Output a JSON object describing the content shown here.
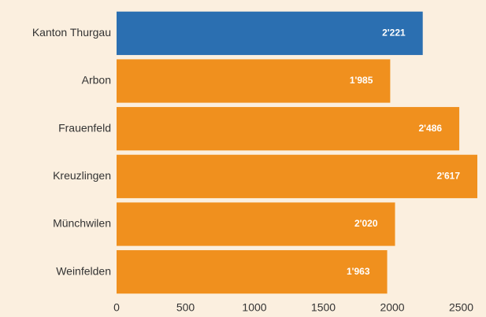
{
  "chart_data": {
    "type": "bar",
    "orientation": "horizontal",
    "categories": [
      "Kanton Thurgau",
      "Arbon",
      "Frauenfeld",
      "Kreuzlingen",
      "Münchwilen",
      "Weinfelden"
    ],
    "values": [
      2221,
      1985,
      2486,
      2617,
      2020,
      1963
    ],
    "value_labels": [
      "2'221",
      "1'985",
      "2'486",
      "2'617",
      "2'020",
      "1'963"
    ],
    "colors": [
      "#2b6fb1",
      "#f0901e",
      "#f0901e",
      "#f0901e",
      "#f0901e",
      "#f0901e"
    ],
    "xlim": [
      0,
      2617
    ],
    "xticks": [
      0,
      500,
      1000,
      1500,
      2000,
      2500
    ],
    "grid": false
  }
}
